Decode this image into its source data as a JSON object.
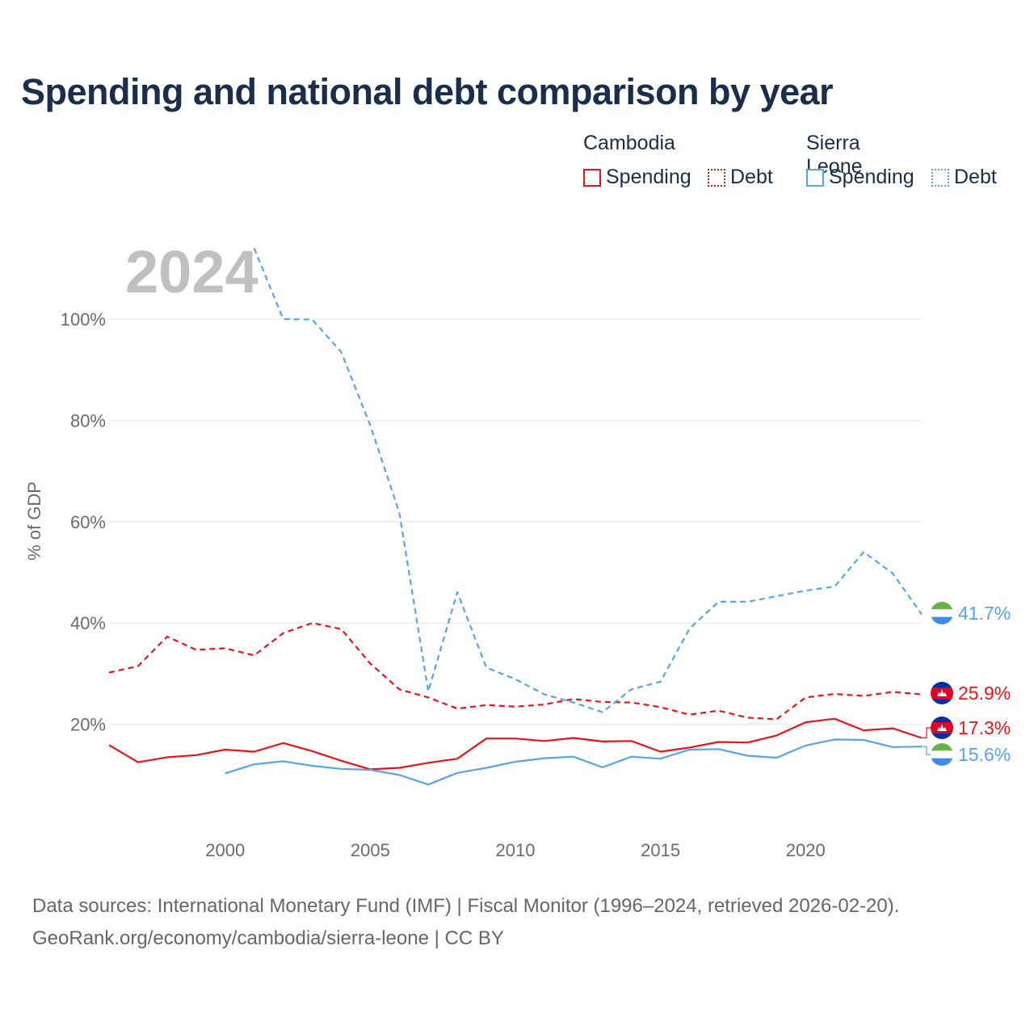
{
  "title": "Spending and national debt comparison by year",
  "legend": {
    "groups": [
      {
        "name": "Cambodia",
        "items": [
          "Spending",
          "Debt"
        ],
        "color": "#e8141c"
      },
      {
        "name": "Sierra Leone",
        "items": [
          "Spending",
          "Debt"
        ],
        "color": "#5ba3e6"
      }
    ]
  },
  "year_label": "2024",
  "footer": {
    "line1": "Data sources: International Monetary Fund (IMF) | Fiscal Monitor (1996–2024, retrieved 2026-02-20).",
    "line2": "GeoRank.org/economy/cambodia/sierra-leone | CC BY"
  },
  "chart_data": {
    "type": "line",
    "ylabel": "% of GDP",
    "xlabel": "",
    "xlim": [
      1996,
      2024
    ],
    "ylim": [
      0,
      115
    ],
    "x_ticks": [
      2000,
      2005,
      2010,
      2015,
      2020
    ],
    "x_tick_labels": [
      "2000",
      "2005",
      "2010",
      "2015",
      "2020"
    ],
    "y_ticks": [
      20,
      40,
      60,
      80,
      100
    ],
    "y_tick_labels": [
      "20%",
      "40%",
      "60%",
      "80%",
      "100%"
    ],
    "grid": true,
    "series": [
      {
        "name": "Cambodia Spending",
        "country": "Cambodia",
        "metric": "Spending",
        "color": "#e8141c",
        "dash": "solid",
        "x": [
          1996,
          1997,
          1998,
          1999,
          2000,
          2001,
          2002,
          2003,
          2004,
          2005,
          2006,
          2007,
          2008,
          2009,
          2010,
          2011,
          2012,
          2013,
          2014,
          2015,
          2016,
          2017,
          2018,
          2019,
          2020,
          2021,
          2022,
          2023,
          2024
        ],
        "values": [
          15.9,
          12.5,
          13.5,
          13.9,
          15.0,
          14.6,
          16.3,
          14.7,
          12.8,
          11.1,
          11.4,
          12.4,
          13.2,
          17.2,
          17.2,
          16.7,
          17.3,
          16.6,
          16.7,
          14.6,
          15.4,
          16.5,
          16.4,
          17.8,
          20.4,
          21.1,
          18.8,
          19.2,
          17.3
        ],
        "end_label": "17.3%"
      },
      {
        "name": "Cambodia Debt",
        "country": "Cambodia",
        "metric": "Debt",
        "color": "#e8141c",
        "dash": "dashed",
        "x": [
          1996,
          1997,
          1998,
          1999,
          2000,
          2001,
          2002,
          2003,
          2004,
          2005,
          2006,
          2007,
          2008,
          2009,
          2010,
          2011,
          2012,
          2013,
          2014,
          2015,
          2016,
          2017,
          2018,
          2019,
          2020,
          2021,
          2022,
          2023,
          2024
        ],
        "values": [
          30.2,
          31.5,
          37.3,
          34.7,
          35.0,
          33.6,
          38.0,
          40.0,
          38.8,
          32.0,
          26.9,
          25.3,
          23.1,
          23.8,
          23.5,
          23.9,
          25.0,
          24.4,
          24.3,
          23.4,
          21.9,
          22.7,
          21.3,
          21.0,
          25.3,
          26.0,
          25.6,
          26.4,
          25.9
        ],
        "end_label": "25.9%"
      },
      {
        "name": "Sierra Leone Spending",
        "country": "Sierra Leone",
        "metric": "Spending",
        "color": "#5ba3e6",
        "dash": "solid",
        "x": [
          2000,
          2001,
          2002,
          2003,
          2004,
          2005,
          2006,
          2007,
          2008,
          2009,
          2010,
          2011,
          2012,
          2013,
          2014,
          2015,
          2016,
          2017,
          2018,
          2019,
          2020,
          2021,
          2022,
          2023,
          2024
        ],
        "values": [
          10.3,
          12.1,
          12.7,
          11.8,
          11.2,
          11.0,
          10.0,
          8.1,
          10.4,
          11.4,
          12.6,
          13.3,
          13.6,
          11.5,
          13.6,
          13.2,
          15.0,
          15.1,
          13.8,
          13.4,
          15.8,
          17.0,
          16.9,
          15.5,
          15.6
        ],
        "end_label": "15.6%"
      },
      {
        "name": "Sierra Leone Debt",
        "country": "Sierra Leone",
        "metric": "Debt",
        "color": "#5ba3e6",
        "dash": "dashed",
        "x": [
          2001,
          2002,
          2003,
          2004,
          2005,
          2006,
          2007,
          2008,
          2009,
          2010,
          2011,
          2012,
          2013,
          2014,
          2015,
          2016,
          2017,
          2018,
          2019,
          2020,
          2021,
          2022,
          2023,
          2024
        ],
        "values": [
          114.0,
          100.0,
          99.9,
          93.5,
          79.0,
          61.8,
          26.5,
          46.1,
          31.2,
          28.9,
          25.9,
          24.3,
          22.4,
          26.9,
          28.4,
          38.9,
          44.2,
          44.2,
          45.3,
          46.4,
          47.2,
          54.0,
          49.8,
          41.7
        ],
        "end_label": "41.7%"
      }
    ]
  }
}
